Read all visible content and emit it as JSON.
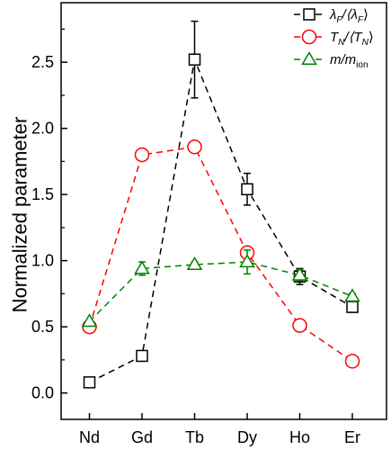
{
  "chart_data": {
    "type": "line",
    "ylabel": "Normalized parameter",
    "xlabel": "",
    "categories": [
      "Nd",
      "Gd",
      "Tb",
      "Dy",
      "Ho",
      "Er"
    ],
    "ylim": [
      -0.2,
      2.95
    ],
    "yticks": [
      "0.0",
      "0.5",
      "1.0",
      "1.5",
      "2.0",
      "2.5"
    ],
    "yticks_values": [
      0.0,
      0.5,
      1.0,
      1.5,
      2.0,
      2.5
    ],
    "grid": false,
    "legend_position": "top-right",
    "series": [
      {
        "key": "lambda",
        "name_main": "λ",
        "name_sub": "F",
        "name_mid": "/⟨λ",
        "name_sub2": "F",
        "name_end": "⟩",
        "color": "#000000",
        "marker": "square",
        "values": [
          0.08,
          0.28,
          2.52,
          1.54,
          0.88,
          0.65
        ],
        "errors": [
          0.02,
          0.03,
          0.29,
          0.12,
          0.06,
          0.04
        ]
      },
      {
        "key": "tn",
        "name_main": "T",
        "name_sub": "N",
        "name_mid": "/⟨T",
        "name_sub2": "N",
        "name_end": "⟩",
        "color": "#ff0000",
        "marker": "circle",
        "values": [
          0.5,
          1.8,
          1.86,
          1.06,
          0.51,
          0.24
        ],
        "errors": [
          0,
          0,
          0,
          0,
          0,
          0
        ]
      },
      {
        "key": "mass",
        "name_main": "m/m",
        "name_sub": "ion",
        "name_mid": "",
        "name_sub2": "",
        "name_end": "",
        "color": "#008000",
        "marker": "triangle",
        "values": [
          0.54,
          0.94,
          0.97,
          0.99,
          0.89,
          0.73
        ],
        "errors": [
          0,
          0.05,
          0.02,
          0.09,
          0.04,
          0.02
        ]
      }
    ]
  }
}
